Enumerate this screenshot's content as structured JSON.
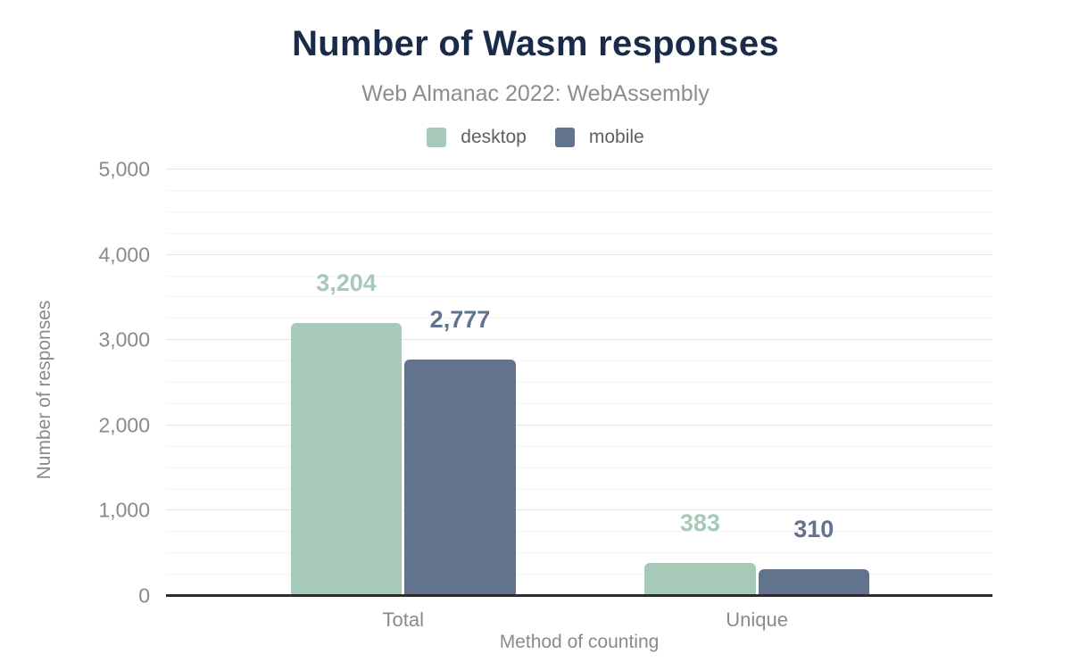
{
  "chart_data": {
    "type": "bar",
    "title": "Number of Wasm responses",
    "subtitle": "Web Almanac 2022: WebAssembly",
    "xlabel": "Method of counting",
    "ylabel": "Number of responses",
    "categories": [
      "Total",
      "Unique"
    ],
    "series": [
      {
        "name": "desktop",
        "color": "#a6c9b8",
        "values": [
          3204,
          383
        ],
        "labels": [
          "3,204",
          "383"
        ]
      },
      {
        "name": "mobile",
        "color": "#62738e",
        "values": [
          2777,
          310
        ],
        "labels": [
          "2,777",
          "310"
        ]
      }
    ],
    "ylim": [
      0,
      5000
    ],
    "yticks": [
      0,
      1000,
      2000,
      3000,
      4000,
      5000
    ],
    "ytick_labels": [
      "0",
      "1,000",
      "2,000",
      "3,000",
      "4,000",
      "5,000"
    ],
    "minor_grid_step": 250,
    "grid": true,
    "legend_position": "top",
    "layout": {
      "group_left_pct": [
        15.1,
        57.9
      ],
      "group_width_pct": 27.2
    }
  },
  "colors": {
    "title_text": "#1a2b4a",
    "subtitle_text": "#8d8d8d",
    "axis_text": "#8a8a8a",
    "legend_text": "#5f5f5f",
    "axis_line": "#2d2d2d",
    "grid_major": "#e5e5e5",
    "grid_minor": "#f4f4f4",
    "background": "#ffffff"
  }
}
